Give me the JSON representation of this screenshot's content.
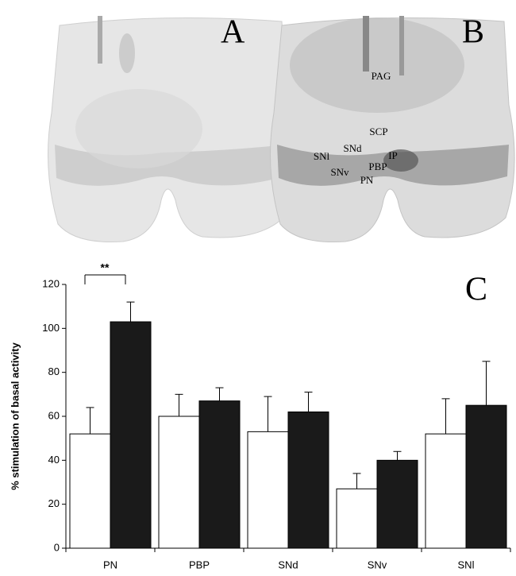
{
  "panels": {
    "a": "A",
    "b": "B",
    "c": "C",
    "regions": [
      "PAG",
      "SCP",
      "SNl",
      "SNd",
      "IP",
      "PBP",
      "SNv",
      "PN"
    ]
  },
  "chart_data": {
    "type": "bar",
    "ylabel": "% stimulation of basal activity",
    "categories": [
      "PN",
      "PBP",
      "SNd",
      "SNv",
      "SNl"
    ],
    "series": [
      {
        "color": "#ffffff",
        "values": [
          52,
          60,
          53,
          27,
          52
        ],
        "errors": [
          12,
          10,
          16,
          7,
          16
        ]
      },
      {
        "color": "#1a1a1a",
        "values": [
          103,
          67,
          62,
          40,
          65
        ],
        "errors": [
          9,
          6,
          9,
          4,
          20
        ]
      }
    ],
    "ylim": [
      0,
      120
    ],
    "yticks": [
      0,
      20,
      40,
      60,
      80,
      100,
      120
    ],
    "annotation": "**"
  }
}
